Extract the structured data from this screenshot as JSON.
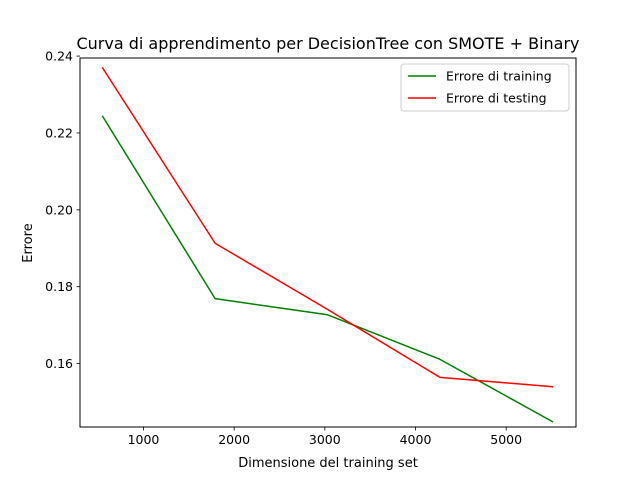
{
  "chart_data": {
    "type": "line",
    "title": "Curva di apprendimento per DecisionTree con SMOTE + Binary",
    "xlabel": "Dimensione del training set",
    "ylabel": "Errore",
    "xlim": [
      300,
      5770
    ],
    "ylim": [
      0.1435,
      0.2395
    ],
    "x_ticks": [
      1000,
      2000,
      3000,
      4000,
      5000
    ],
    "y_ticks": [
      0.16,
      0.18,
      0.2,
      0.22,
      0.24
    ],
    "x_tick_labels": [
      "1000",
      "2000",
      "3000",
      "4000",
      "5000"
    ],
    "y_tick_labels": [
      "0.16",
      "0.18",
      "0.20",
      "0.22",
      "0.24"
    ],
    "grid": false,
    "legend_position": "top-right",
    "series": [
      {
        "name": "Errore di training",
        "color": "#008000",
        "x": [
          550,
          1790,
          3030,
          4270,
          5510
        ],
        "y": [
          0.2243,
          0.1769,
          0.1727,
          0.1611,
          0.1449
        ]
      },
      {
        "name": "Errore di testing",
        "color": "#ff0000",
        "x": [
          550,
          1790,
          3030,
          4270,
          5510
        ],
        "y": [
          0.2369,
          0.1913,
          0.1741,
          0.1564,
          0.154
        ]
      }
    ]
  }
}
